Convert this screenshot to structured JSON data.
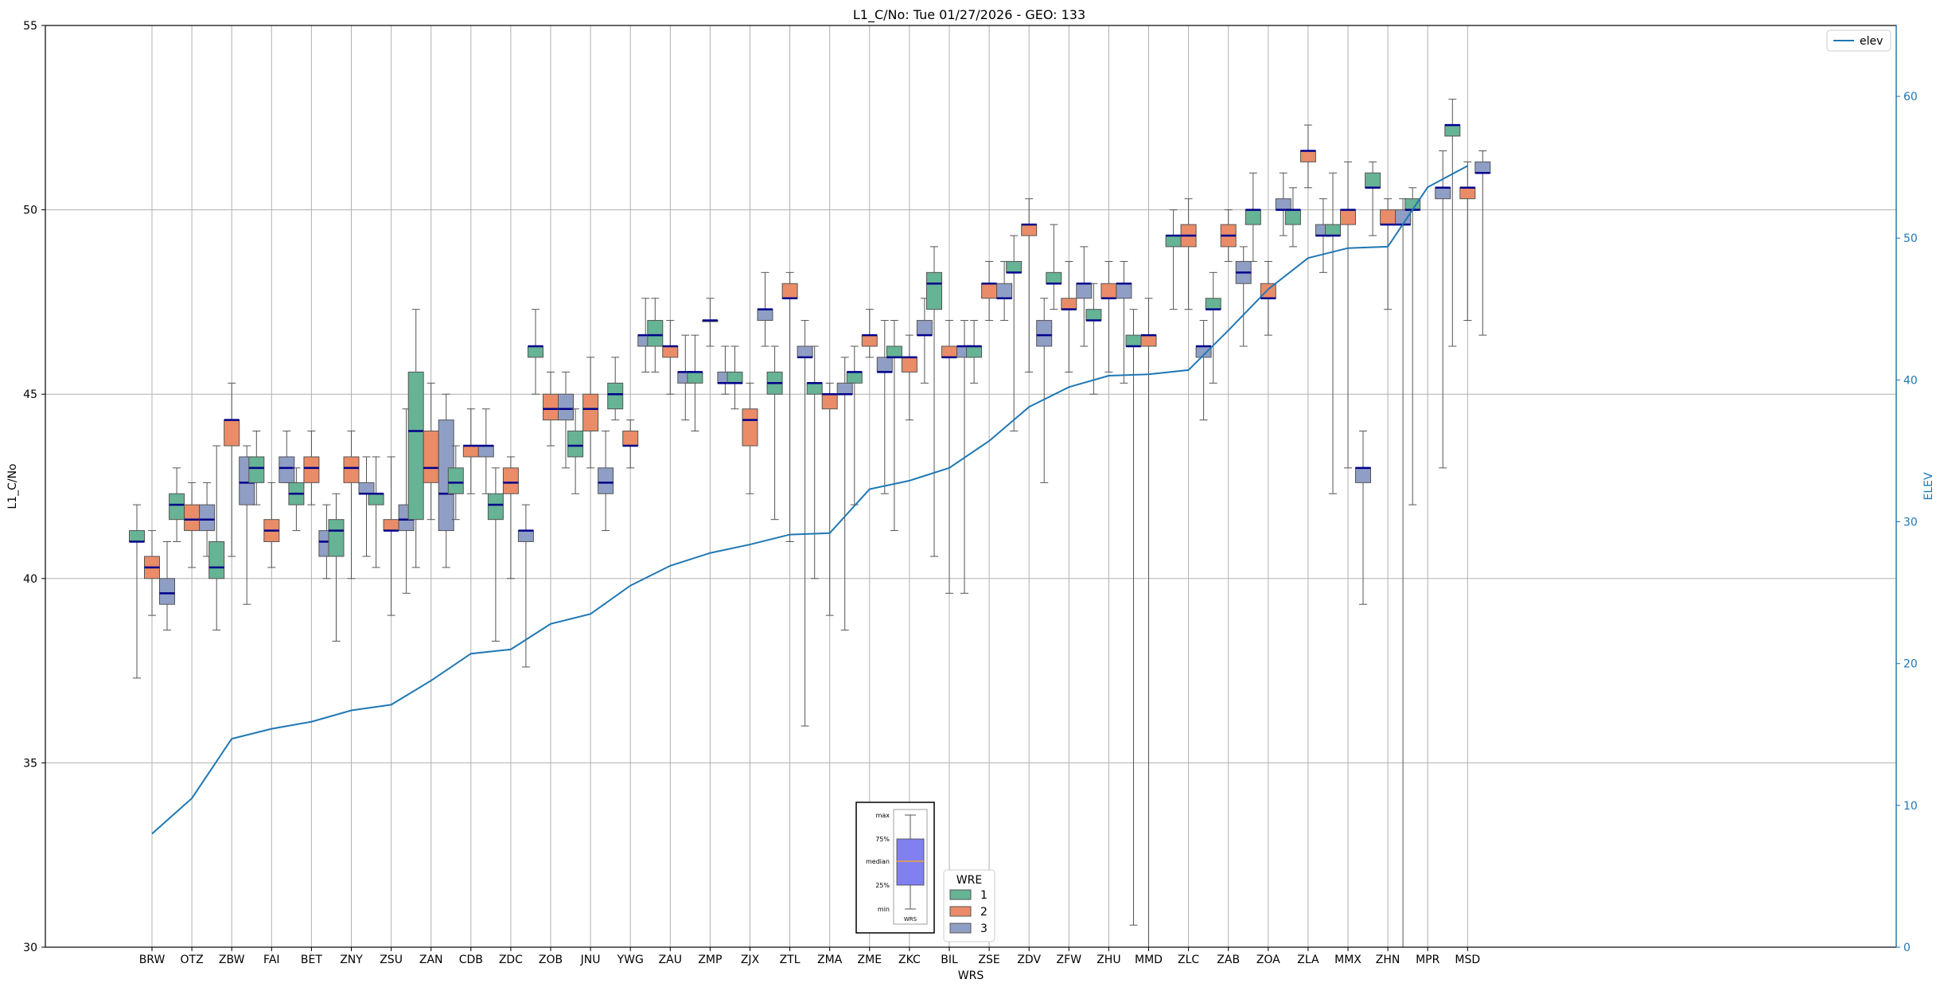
{
  "chart_data": {
    "type": "box",
    "title": "L1_C/No: Tue 01/27/2026 - GEO: 133",
    "xlabel": "WRS",
    "ylabel": "L1_C/No",
    "y2label": "ELEV",
    "ylim": [
      30,
      55
    ],
    "y2lim": [
      0,
      65
    ],
    "yticks": [
      30,
      35,
      40,
      45,
      50,
      55
    ],
    "y2ticks": [
      0,
      10,
      20,
      30,
      40,
      50,
      60
    ],
    "grid": true,
    "colors": {
      "wre1": "#66b395",
      "wre2": "#ea8c68",
      "wre3": "#8f9ec5",
      "elev": "#1f77b4",
      "median": "#00008b",
      "whisker": "#555555",
      "grid": "#b0b0b0"
    },
    "categories": [
      "BRW",
      "OTZ",
      "ZBW",
      "FAI",
      "BET",
      "ZNY",
      "ZSU",
      "ZAN",
      "CDB",
      "ZDC",
      "ZOB",
      "JNU",
      "YWG",
      "ZAU",
      "ZMP",
      "ZJX",
      "ZTL",
      "ZMA",
      "ZME",
      "ZKC",
      "BIL",
      "ZSE",
      "ZDV",
      "ZFW",
      "ZHU",
      "MMD",
      "ZLC",
      "ZAB",
      "ZOA",
      "ZLA",
      "MMX",
      "ZHN",
      "MPR",
      "MSD"
    ],
    "boxes": [
      {
        "wrs": "BRW",
        "wre": 1,
        "min": 37.3,
        "q1": 41.0,
        "median": 41.0,
        "q3": 41.3,
        "max": 42.0
      },
      {
        "wrs": "BRW",
        "wre": 2,
        "min": 39.0,
        "q1": 40.0,
        "median": 40.3,
        "q3": 40.6,
        "max": 41.3
      },
      {
        "wrs": "BRW",
        "wre": 3,
        "min": 38.6,
        "q1": 39.3,
        "median": 39.6,
        "q3": 40.0,
        "max": 41.0
      },
      {
        "wrs": "OTZ",
        "wre": 1,
        "min": 41.0,
        "q1": 41.6,
        "median": 42.0,
        "q3": 42.3,
        "max": 43.0
      },
      {
        "wrs": "OTZ",
        "wre": 2,
        "min": 40.3,
        "q1": 41.3,
        "median": 41.6,
        "q3": 42.0,
        "max": 42.6
      },
      {
        "wrs": "OTZ",
        "wre": 3,
        "min": 40.6,
        "q1": 41.3,
        "median": 41.6,
        "q3": 42.0,
        "max": 42.6
      },
      {
        "wrs": "ZBW",
        "wre": 1,
        "min": 38.6,
        "q1": 40.0,
        "median": 40.3,
        "q3": 41.0,
        "max": 43.6
      },
      {
        "wrs": "ZBW",
        "wre": 2,
        "min": 40.6,
        "q1": 43.6,
        "median": 44.3,
        "q3": 44.3,
        "max": 45.3
      },
      {
        "wrs": "ZBW",
        "wre": 3,
        "min": 39.3,
        "q1": 42.0,
        "median": 42.6,
        "q3": 43.3,
        "max": 43.6
      },
      {
        "wrs": "FAI",
        "wre": 1,
        "min": 42.0,
        "q1": 42.6,
        "median": 43.0,
        "q3": 43.3,
        "max": 44.0
      },
      {
        "wrs": "FAI",
        "wre": 2,
        "min": 40.3,
        "q1": 41.0,
        "median": 41.3,
        "q3": 41.6,
        "max": 42.6
      },
      {
        "wrs": "FAI",
        "wre": 3,
        "min": 42.6,
        "q1": 42.6,
        "median": 43.0,
        "q3": 43.3,
        "max": 44.0
      },
      {
        "wrs": "BET",
        "wre": 1,
        "min": 41.3,
        "q1": 42.0,
        "median": 42.3,
        "q3": 42.6,
        "max": 43.0
      },
      {
        "wrs": "BET",
        "wre": 2,
        "min": 42.0,
        "q1": 42.6,
        "median": 43.0,
        "q3": 43.3,
        "max": 44.0
      },
      {
        "wrs": "BET",
        "wre": 3,
        "min": 40.0,
        "q1": 40.6,
        "median": 41.0,
        "q3": 41.3,
        "max": 42.0
      },
      {
        "wrs": "ZNY",
        "wre": 1,
        "min": 38.3,
        "q1": 40.6,
        "median": 41.3,
        "q3": 41.6,
        "max": 42.3
      },
      {
        "wrs": "ZNY",
        "wre": 2,
        "min": 40.0,
        "q1": 42.6,
        "median": 43.0,
        "q3": 43.3,
        "max": 44.0
      },
      {
        "wrs": "ZNY",
        "wre": 3,
        "min": 40.6,
        "q1": 42.3,
        "median": 42.3,
        "q3": 42.6,
        "max": 43.3
      },
      {
        "wrs": "ZSU",
        "wre": 1,
        "min": 40.3,
        "q1": 42.0,
        "median": 42.3,
        "q3": 42.3,
        "max": 43.3
      },
      {
        "wrs": "ZSU",
        "wre": 2,
        "min": 39.0,
        "q1": 41.3,
        "median": 41.3,
        "q3": 41.6,
        "max": 43.3
      },
      {
        "wrs": "ZSU",
        "wre": 3,
        "min": 39.6,
        "q1": 41.3,
        "median": 41.6,
        "q3": 42.0,
        "max": 44.6
      },
      {
        "wrs": "ZAN",
        "wre": 1,
        "min": 40.3,
        "q1": 41.6,
        "median": 44.0,
        "q3": 45.6,
        "max": 47.3
      },
      {
        "wrs": "ZAN",
        "wre": 2,
        "min": 41.6,
        "q1": 42.6,
        "median": 43.0,
        "q3": 44.0,
        "max": 45.3
      },
      {
        "wrs": "ZAN",
        "wre": 3,
        "min": 40.3,
        "q1": 41.3,
        "median": 42.3,
        "q3": 44.3,
        "max": 45.0
      },
      {
        "wrs": "CDB",
        "wre": 1,
        "min": 41.6,
        "q1": 42.3,
        "median": 42.6,
        "q3": 43.0,
        "max": 43.6
      },
      {
        "wrs": "CDB",
        "wre": 2,
        "min": 42.3,
        "q1": 43.3,
        "median": 43.6,
        "q3": 43.6,
        "max": 44.6
      },
      {
        "wrs": "CDB",
        "wre": 3,
        "min": 42.3,
        "q1": 43.3,
        "median": 43.6,
        "q3": 43.6,
        "max": 44.6
      },
      {
        "wrs": "ZDC",
        "wre": 1,
        "min": 38.3,
        "q1": 41.6,
        "median": 42.0,
        "q3": 42.3,
        "max": 43.0
      },
      {
        "wrs": "ZDC",
        "wre": 2,
        "min": 40.0,
        "q1": 42.3,
        "median": 42.6,
        "q3": 43.0,
        "max": 43.3
      },
      {
        "wrs": "ZDC",
        "wre": 3,
        "min": 37.6,
        "q1": 41.0,
        "median": 41.3,
        "q3": 41.3,
        "max": 42.0
      },
      {
        "wrs": "ZOB",
        "wre": 1,
        "min": 45.0,
        "q1": 46.0,
        "median": 46.3,
        "q3": 46.3,
        "max": 47.3
      },
      {
        "wrs": "ZOB",
        "wre": 2,
        "min": 43.6,
        "q1": 44.3,
        "median": 44.6,
        "q3": 45.0,
        "max": 45.6
      },
      {
        "wrs": "ZOB",
        "wre": 3,
        "min": 43.0,
        "q1": 44.3,
        "median": 44.6,
        "q3": 45.0,
        "max": 45.6
      },
      {
        "wrs": "JNU",
        "wre": 1,
        "min": 42.3,
        "q1": 43.3,
        "median": 43.6,
        "q3": 44.0,
        "max": 44.6
      },
      {
        "wrs": "JNU",
        "wre": 2,
        "min": 43.0,
        "q1": 44.0,
        "median": 44.6,
        "q3": 45.0,
        "max": 46.0
      },
      {
        "wrs": "JNU",
        "wre": 3,
        "min": 41.3,
        "q1": 42.3,
        "median": 42.6,
        "q3": 43.0,
        "max": 44.0
      },
      {
        "wrs": "YWG",
        "wre": 1,
        "min": 44.3,
        "q1": 44.6,
        "median": 45.0,
        "q3": 45.3,
        "max": 46.0
      },
      {
        "wrs": "YWG",
        "wre": 2,
        "min": 43.0,
        "q1": 43.6,
        "median": 43.6,
        "q3": 44.0,
        "max": 44.3
      },
      {
        "wrs": "YWG",
        "wre": 3,
        "min": 45.6,
        "q1": 46.3,
        "median": 46.6,
        "q3": 46.6,
        "max": 47.6
      },
      {
        "wrs": "ZAU",
        "wre": 1,
        "min": 45.6,
        "q1": 46.3,
        "median": 46.6,
        "q3": 47.0,
        "max": 47.6
      },
      {
        "wrs": "ZAU",
        "wre": 2,
        "min": 45.0,
        "q1": 46.0,
        "median": 46.3,
        "q3": 46.3,
        "max": 47.0
      },
      {
        "wrs": "ZAU",
        "wre": 3,
        "min": 44.3,
        "q1": 45.3,
        "median": 45.6,
        "q3": 45.6,
        "max": 46.6
      },
      {
        "wrs": "ZMP",
        "wre": 1,
        "min": 44.0,
        "q1": 45.3,
        "median": 45.6,
        "q3": 45.6,
        "max": 46.6
      },
      {
        "wrs": "ZMP",
        "wre": 2,
        "min": 46.3,
        "q1": 47.0,
        "median": 47.0,
        "q3": 47.0,
        "max": 47.6
      },
      {
        "wrs": "ZMP",
        "wre": 3,
        "min": 45.0,
        "q1": 45.3,
        "median": 45.3,
        "q3": 45.6,
        "max": 46.3
      },
      {
        "wrs": "ZJX",
        "wre": 1,
        "min": 44.6,
        "q1": 45.3,
        "median": 45.3,
        "q3": 45.6,
        "max": 46.3
      },
      {
        "wrs": "ZJX",
        "wre": 2,
        "min": 42.3,
        "q1": 43.6,
        "median": 44.3,
        "q3": 44.6,
        "max": 45.3
      },
      {
        "wrs": "ZJX",
        "wre": 3,
        "min": 46.3,
        "q1": 47.0,
        "median": 47.3,
        "q3": 47.3,
        "max": 48.3
      },
      {
        "wrs": "ZTL",
        "wre": 1,
        "min": 41.6,
        "q1": 45.0,
        "median": 45.3,
        "q3": 45.6,
        "max": 46.3
      },
      {
        "wrs": "ZTL",
        "wre": 2,
        "min": 41.0,
        "q1": 47.6,
        "median": 47.6,
        "q3": 48.0,
        "max": 48.3
      },
      {
        "wrs": "ZTL",
        "wre": 3,
        "min": 36.0,
        "q1": 46.0,
        "median": 46.0,
        "q3": 46.3,
        "max": 47.0
      },
      {
        "wrs": "ZMA",
        "wre": 1,
        "min": 40.0,
        "q1": 45.0,
        "median": 45.3,
        "q3": 45.3,
        "max": 46.3
      },
      {
        "wrs": "ZMA",
        "wre": 2,
        "min": 39.0,
        "q1": 44.6,
        "median": 45.0,
        "q3": 45.0,
        "max": 45.3
      },
      {
        "wrs": "ZMA",
        "wre": 3,
        "min": 38.6,
        "q1": 45.0,
        "median": 45.0,
        "q3": 45.3,
        "max": 46.0
      },
      {
        "wrs": "ZME",
        "wre": 1,
        "min": 42.0,
        "q1": 45.3,
        "median": 45.6,
        "q3": 45.6,
        "max": 46.3
      },
      {
        "wrs": "ZME",
        "wre": 2,
        "min": 46.0,
        "q1": 46.3,
        "median": 46.6,
        "q3": 46.6,
        "max": 47.3
      },
      {
        "wrs": "ZME",
        "wre": 3,
        "min": 42.3,
        "q1": 45.6,
        "median": 45.6,
        "q3": 46.0,
        "max": 47.0
      },
      {
        "wrs": "ZKC",
        "wre": 1,
        "min": 41.3,
        "q1": 46.0,
        "median": 46.0,
        "q3": 46.3,
        "max": 47.0
      },
      {
        "wrs": "ZKC",
        "wre": 2,
        "min": 44.3,
        "q1": 45.6,
        "median": 46.0,
        "q3": 46.0,
        "max": 46.6
      },
      {
        "wrs": "ZKC",
        "wre": 3,
        "min": 45.3,
        "q1": 46.6,
        "median": 46.6,
        "q3": 47.0,
        "max": 47.6
      },
      {
        "wrs": "BIL",
        "wre": 1,
        "min": 40.6,
        "q1": 47.3,
        "median": 48.0,
        "q3": 48.3,
        "max": 49.0
      },
      {
        "wrs": "BIL",
        "wre": 2,
        "min": 39.6,
        "q1": 46.0,
        "median": 46.0,
        "q3": 46.3,
        "max": 47.0
      },
      {
        "wrs": "BIL",
        "wre": 3,
        "min": 39.6,
        "q1": 46.0,
        "median": 46.3,
        "q3": 46.3,
        "max": 47.0
      },
      {
        "wrs": "ZSE",
        "wre": 1,
        "min": 45.3,
        "q1": 46.0,
        "median": 46.3,
        "q3": 46.3,
        "max": 47.0
      },
      {
        "wrs": "ZSE",
        "wre": 2,
        "min": 47.0,
        "q1": 47.6,
        "median": 48.0,
        "q3": 48.0,
        "max": 48.6
      },
      {
        "wrs": "ZSE",
        "wre": 3,
        "min": 47.0,
        "q1": 47.6,
        "median": 47.6,
        "q3": 48.0,
        "max": 48.6
      },
      {
        "wrs": "ZDV",
        "wre": 1,
        "min": 44.0,
        "q1": 48.3,
        "median": 48.3,
        "q3": 48.6,
        "max": 49.3
      },
      {
        "wrs": "ZDV",
        "wre": 2,
        "min": 45.6,
        "q1": 49.3,
        "median": 49.6,
        "q3": 49.6,
        "max": 50.3
      },
      {
        "wrs": "ZDV",
        "wre": 3,
        "min": 42.6,
        "q1": 46.3,
        "median": 46.6,
        "q3": 47.0,
        "max": 47.6
      },
      {
        "wrs": "ZFW",
        "wre": 1,
        "min": 47.3,
        "q1": 48.0,
        "median": 48.0,
        "q3": 48.3,
        "max": 49.6
      },
      {
        "wrs": "ZFW",
        "wre": 2,
        "min": 45.6,
        "q1": 47.3,
        "median": 47.3,
        "q3": 47.6,
        "max": 48.6
      },
      {
        "wrs": "ZFW",
        "wre": 3,
        "min": 46.3,
        "q1": 47.6,
        "median": 48.0,
        "q3": 48.0,
        "max": 49.0
      },
      {
        "wrs": "ZHU",
        "wre": 1,
        "min": 45.0,
        "q1": 47.0,
        "median": 47.0,
        "q3": 47.3,
        "max": 48.0
      },
      {
        "wrs": "ZHU",
        "wre": 2,
        "min": 45.6,
        "q1": 47.6,
        "median": 47.6,
        "q3": 48.0,
        "max": 48.6
      },
      {
        "wrs": "ZHU",
        "wre": 3,
        "min": 45.3,
        "q1": 47.6,
        "median": 48.0,
        "q3": 48.0,
        "max": 48.6
      },
      {
        "wrs": "MMD",
        "wre": 1,
        "min": 30.6,
        "q1": 46.3,
        "median": 46.3,
        "q3": 46.6,
        "max": 47.3
      },
      {
        "wrs": "MMD",
        "wre": 2,
        "min": 30.0,
        "q1": 46.3,
        "median": 46.6,
        "q3": 46.6,
        "max": 47.6
      },
      {
        "wrs": "ZLC",
        "wre": 1,
        "min": 47.3,
        "q1": 49.0,
        "median": 49.3,
        "q3": 49.3,
        "max": 50.0
      },
      {
        "wrs": "ZLC",
        "wre": 2,
        "min": 47.3,
        "q1": 49.0,
        "median": 49.3,
        "q3": 49.6,
        "max": 50.3
      },
      {
        "wrs": "ZLC",
        "wre": 3,
        "min": 44.3,
        "q1": 46.0,
        "median": 46.3,
        "q3": 46.3,
        "max": 47.0
      },
      {
        "wrs": "ZAB",
        "wre": 1,
        "min": 45.3,
        "q1": 47.3,
        "median": 47.3,
        "q3": 47.6,
        "max": 48.3
      },
      {
        "wrs": "ZAB",
        "wre": 2,
        "min": 48.6,
        "q1": 49.0,
        "median": 49.3,
        "q3": 49.6,
        "max": 50.0
      },
      {
        "wrs": "ZAB",
        "wre": 3,
        "min": 46.3,
        "q1": 48.0,
        "median": 48.3,
        "q3": 48.6,
        "max": 49.0
      },
      {
        "wrs": "ZOA",
        "wre": 1,
        "min": 48.6,
        "q1": 49.6,
        "median": 50.0,
        "q3": 50.0,
        "max": 51.0
      },
      {
        "wrs": "ZOA",
        "wre": 2,
        "min": 46.6,
        "q1": 47.6,
        "median": 47.6,
        "q3": 48.0,
        "max": 48.6
      },
      {
        "wrs": "ZOA",
        "wre": 3,
        "min": 49.3,
        "q1": 50.0,
        "median": 50.0,
        "q3": 50.3,
        "max": 51.0
      },
      {
        "wrs": "ZLA",
        "wre": 1,
        "min": 49.0,
        "q1": 49.6,
        "median": 50.0,
        "q3": 50.0,
        "max": 50.6
      },
      {
        "wrs": "ZLA",
        "wre": 2,
        "min": 50.6,
        "q1": 51.3,
        "median": 51.6,
        "q3": 51.6,
        "max": 52.3
      },
      {
        "wrs": "ZLA",
        "wre": 3,
        "min": 48.3,
        "q1": 49.3,
        "median": 49.3,
        "q3": 49.6,
        "max": 50.3
      },
      {
        "wrs": "MMX",
        "wre": 1,
        "min": 42.3,
        "q1": 49.3,
        "median": 49.3,
        "q3": 49.6,
        "max": 51.0
      },
      {
        "wrs": "MMX",
        "wre": 2,
        "min": 43.0,
        "q1": 49.6,
        "median": 50.0,
        "q3": 50.0,
        "max": 51.3
      },
      {
        "wrs": "MMX",
        "wre": 3,
        "min": 39.3,
        "q1": 42.6,
        "median": 43.0,
        "q3": 43.0,
        "max": 44.0
      },
      {
        "wrs": "ZHN",
        "wre": 1,
        "min": 49.3,
        "q1": 50.6,
        "median": 50.6,
        "q3": 51.0,
        "max": 51.3
      },
      {
        "wrs": "ZHN",
        "wre": 2,
        "min": 47.3,
        "q1": 49.6,
        "median": 49.6,
        "q3": 50.0,
        "max": 50.3
      },
      {
        "wrs": "ZHN",
        "wre": 3,
        "min": 30.0,
        "q1": 49.6,
        "median": 49.6,
        "q3": 50.0,
        "max": 50.3
      },
      {
        "wrs": "MPR",
        "wre": 1,
        "min": 42.0,
        "q1": 50.0,
        "median": 50.0,
        "q3": 50.3,
        "max": 50.6
      },
      {
        "wrs": "MPR",
        "wre": 3,
        "min": 43.0,
        "q1": 50.3,
        "median": 50.6,
        "q3": 50.6,
        "max": 51.6
      },
      {
        "wrs": "MSD",
        "wre": 1,
        "min": 46.3,
        "q1": 52.0,
        "median": 52.3,
        "q3": 52.3,
        "max": 53.0
      },
      {
        "wrs": "MSD",
        "wre": 2,
        "min": 47.0,
        "q1": 50.3,
        "median": 50.6,
        "q3": 50.6,
        "max": 51.3
      },
      {
        "wrs": "MSD",
        "wre": 3,
        "min": 46.6,
        "q1": 51.0,
        "median": 51.0,
        "q3": 51.3,
        "max": 51.6
      }
    ],
    "series": [
      {
        "name": "elev",
        "axis": "right",
        "values": [
          8.0,
          10.5,
          14.7,
          15.4,
          15.9,
          16.7,
          17.1,
          18.8,
          20.7,
          21.0,
          22.8,
          23.5,
          25.5,
          26.9,
          27.8,
          28.4,
          29.1,
          29.2,
          32.3,
          32.9,
          33.8,
          35.7,
          38.1,
          39.5,
          40.3,
          40.4,
          40.7,
          43.5,
          46.4,
          48.6,
          49.3,
          49.4,
          53.6,
          55.1
        ]
      }
    ],
    "legend_main": {
      "title": "WRE",
      "labels": [
        "1",
        "2",
        "3"
      ],
      "placement": "bottom-center"
    },
    "legend_elev": {
      "label": "elev",
      "placement": "top-right"
    },
    "key_inset": {
      "labels": [
        "max",
        "75%",
        "median",
        "25%",
        "min"
      ],
      "xlabel": "WRS",
      "placement": "bottom-center"
    }
  }
}
